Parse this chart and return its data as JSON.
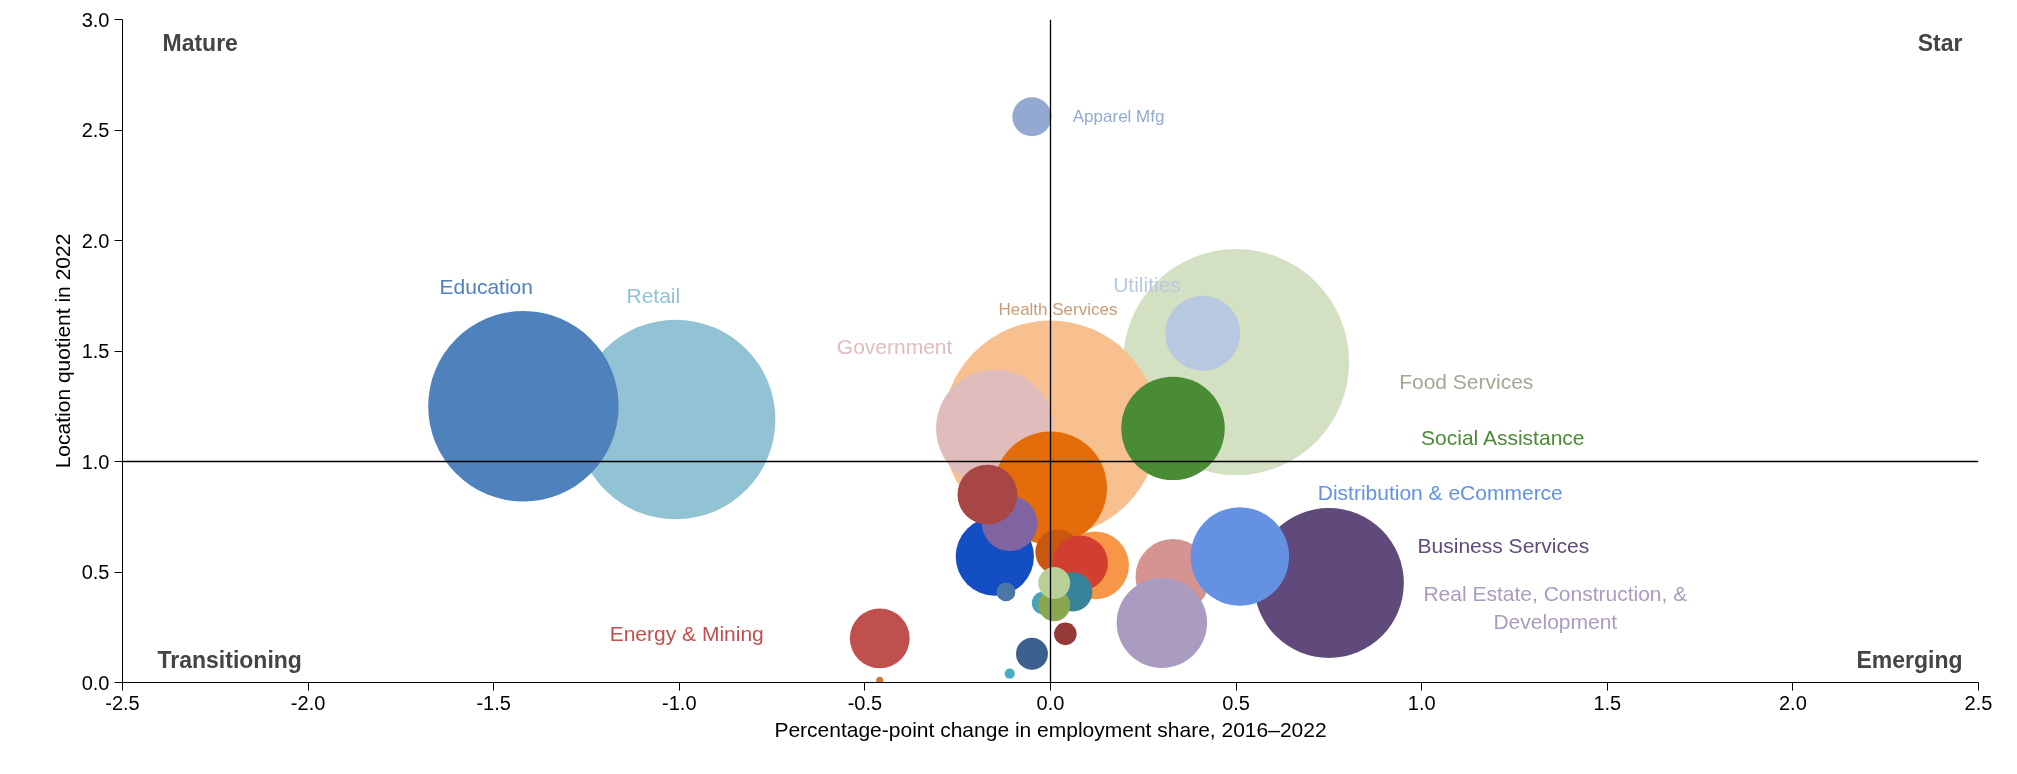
{
  "chart_data": {
    "type": "bubble",
    "xlabel": "Percentage-point change in employment share, 2016–2022",
    "ylabel": "Location quotient in 2022",
    "xlim": [
      -2.5,
      2.5
    ],
    "ylim": [
      0,
      3
    ],
    "xticks": [
      -2.5,
      {
        "value": -2,
        "label": "-2.0"
      },
      -1.5,
      {
        "value": -1,
        "label": "-1.0"
      },
      -0.5,
      {
        "value": 0,
        "label": "0.0"
      },
      0.5,
      {
        "value": 1,
        "label": "1.0"
      },
      1.5,
      {
        "value": 2,
        "label": "2.0"
      },
      2.5
    ],
    "yticks": [
      {
        "value": 0,
        "label": "0.0"
      },
      0.5,
      {
        "value": 1,
        "label": "1.0"
      },
      1.5,
      {
        "value": 2,
        "label": "2.0"
      },
      2.5,
      {
        "value": 3,
        "label": "3.0"
      }
    ],
    "grid": false,
    "ref_lines": [
      {
        "axis": "x",
        "value": 0,
        "color": "#000000"
      },
      {
        "axis": "y",
        "value": 1,
        "color": "#000000"
      }
    ],
    "annotations": [
      "Mature",
      "Star",
      "Transitioning",
      "Emerging"
    ],
    "series": [
      {
        "name": "Food Services",
        "color": "#d3e0c1",
        "x": [
          0.5
        ],
        "values": [
          1.45
        ],
        "sizes": [
          1.0
        ]
      },
      {
        "name": "Health Services",
        "color": "#f9c08f",
        "x": [
          0.0
        ],
        "values": [
          1.15
        ],
        "sizes": [
          0.91
        ]
      },
      {
        "name": "Retail",
        "color": "#92c3d4",
        "x": [
          -1.01
        ],
        "values": [
          1.19
        ],
        "sizes": [
          0.78
        ]
      },
      {
        "name": "Education",
        "color": "#4f81bd",
        "x": [
          -1.42
        ],
        "values": [
          1.25
        ],
        "sizes": [
          0.71
        ]
      },
      {
        "name": "Business Services",
        "color": "#604a7b",
        "x": [
          0.75
        ],
        "values": [
          0.45
        ],
        "sizes": [
          0.44
        ]
      },
      {
        "name": "Government",
        "color": "#e0bcbc",
        "x": [
          -0.15
        ],
        "values": [
          1.15
        ],
        "sizes": [
          0.27
        ]
      },
      {
        "color": "#e46c0a",
        "x": [
          0.0
        ],
        "values": [
          0.88
        ],
        "sizes": [
          0.25
        ]
      },
      {
        "name": "Utilities",
        "color": "#b9c8e1",
        "x": [
          0.41
        ],
        "values": [
          1.58
        ],
        "sizes": [
          0.11
        ]
      },
      {
        "name": "Social Assistance",
        "color": "#4a8b36",
        "x": [
          0.33
        ],
        "values": [
          1.15
        ],
        "sizes": [
          0.21
        ]
      },
      {
        "color": "#d59391",
        "x": [
          0.33
        ],
        "values": [
          0.48
        ],
        "sizes": [
          0.11
        ]
      },
      {
        "name": "Real Estate, Construction, & Development",
        "color": "#aa9bc0",
        "x": [
          0.3
        ],
        "values": [
          0.27
        ],
        "sizes": [
          0.16
        ]
      },
      {
        "name": "Distribution & eCommerce",
        "color": "#6591e3",
        "x": [
          0.51
        ],
        "values": [
          0.57
        ],
        "sizes": [
          0.19
        ]
      },
      {
        "color": "#134fc3",
        "x": [
          -0.15
        ],
        "values": [
          0.57
        ],
        "sizes": [
          0.12
        ]
      },
      {
        "color": "#8064a2",
        "x": [
          -0.11
        ],
        "values": [
          0.72
        ],
        "sizes": [
          0.06
        ]
      },
      {
        "color": "#a84545",
        "x": [
          -0.17
        ],
        "values": [
          0.85
        ],
        "sizes": [
          0.07
        ]
      },
      {
        "color": "#f79646",
        "x": [
          0.12
        ],
        "values": [
          0.53
        ],
        "sizes": [
          0.09
        ]
      },
      {
        "color": "#c8570f",
        "x": [
          0.02
        ],
        "values": [
          0.59
        ],
        "sizes": [
          0.04
        ]
      },
      {
        "color": "#d23f31",
        "x": [
          0.08
        ],
        "values": [
          0.54
        ],
        "sizes": [
          0.06
        ]
      },
      {
        "color": "#37849a",
        "x": [
          0.06
        ],
        "values": [
          0.41
        ],
        "sizes": [
          0.03
        ]
      },
      {
        "color": "#4aa3b8",
        "x": [
          -0.02
        ],
        "values": [
          0.36
        ],
        "sizes": [
          0.01
        ]
      },
      {
        "color": "#8aa64f",
        "x": [
          0.01
        ],
        "values": [
          0.35
        ],
        "sizes": [
          0.02
        ]
      },
      {
        "color": "#b9cf98",
        "x": [
          0.01
        ],
        "values": [
          0.45
        ],
        "sizes": [
          0.02
        ]
      },
      {
        "color": "#4a76a8",
        "x": [
          -0.12
        ],
        "values": [
          0.41
        ],
        "sizes": [
          0.007
        ]
      },
      {
        "color": "#943b38",
        "x": [
          0.04
        ],
        "values": [
          0.22
        ],
        "sizes": [
          0.01
        ]
      },
      {
        "color": "#3b5f8f",
        "x": [
          -0.05
        ],
        "values": [
          0.13
        ],
        "sizes": [
          0.02
        ]
      },
      {
        "color": "#4bacc6",
        "x": [
          -0.11
        ],
        "values": [
          0.04
        ],
        "sizes": [
          0.002
        ]
      },
      {
        "name": "Energy & Mining",
        "color": "#c0504d",
        "x": [
          -0.46
        ],
        "values": [
          0.2
        ],
        "sizes": [
          0.07
        ]
      },
      {
        "color": "#d07a30",
        "x": [
          -0.46
        ],
        "values": [
          0.01
        ],
        "sizes": [
          0.001
        ]
      },
      {
        "name": "Apparel Mfg",
        "color": "#93a9d2",
        "x": [
          -0.05
        ],
        "values": [
          2.56
        ],
        "sizes": [
          0.03
        ]
      }
    ]
  }
}
